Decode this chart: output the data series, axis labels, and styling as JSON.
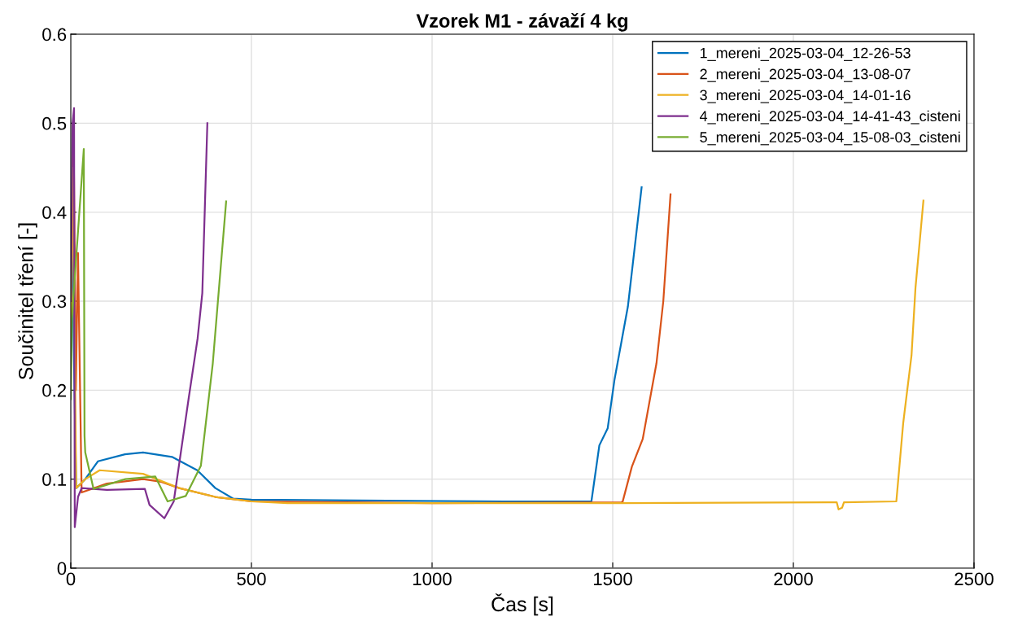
{
  "chart_data": {
    "type": "line",
    "title": "Vzorek M1 - závaží 4 kg",
    "xlabel": "Čas [s]",
    "ylabel": "Součinitel tření [-]",
    "xlim": [
      0,
      2500
    ],
    "ylim": [
      0,
      0.6
    ],
    "xticks": [
      0,
      500,
      1000,
      1500,
      2000,
      2500
    ],
    "yticks": [
      0,
      0.1,
      0.2,
      0.3,
      0.4,
      0.5,
      0.6
    ],
    "grid": true,
    "legend": "top right",
    "marker": "none",
    "line_style": "solid",
    "series": [
      {
        "name": "1_mereni_2025-03-04_12-26-53",
        "color": "#0072bd",
        "x": [
          0,
          3,
          15,
          40,
          75,
          150,
          200,
          280,
          350,
          400,
          450,
          500,
          800,
          1200,
          1441,
          1463,
          1486,
          1505,
          1542,
          1580
        ],
        "values": [
          0.3,
          0.37,
          0.09,
          0.1,
          0.12,
          0.128,
          0.13,
          0.125,
          0.11,
          0.09,
          0.078,
          0.077,
          0.076,
          0.075,
          0.075,
          0.138,
          0.157,
          0.212,
          0.294,
          0.428
        ]
      },
      {
        "name": "2_mereni_2025-03-04_13-08-07",
        "color": "#d95319",
        "x": [
          0,
          8,
          14,
          20,
          30,
          100,
          200,
          250,
          300,
          400,
          500,
          1000,
          1527,
          1553,
          1583,
          1621,
          1640,
          1660
        ],
        "values": [
          0.3,
          0.481,
          0.2,
          0.354,
          0.085,
          0.095,
          0.1,
          0.097,
          0.09,
          0.08,
          0.075,
          0.073,
          0.074,
          0.114,
          0.145,
          0.23,
          0.3,
          0.42
        ]
      },
      {
        "name": "3_mereni_2025-03-04_14-01-16",
        "color": "#edb120",
        "x": [
          0,
          6,
          15,
          40,
          80,
          200,
          250,
          300,
          400,
          500,
          600,
          1000,
          1500,
          2120,
          2125,
          2135,
          2140,
          2285,
          2304,
          2327,
          2338,
          2360
        ],
        "values": [
          0.24,
          0.45,
          0.09,
          0.1,
          0.11,
          0.106,
          0.098,
          0.09,
          0.08,
          0.075,
          0.073,
          0.073,
          0.073,
          0.074,
          0.066,
          0.068,
          0.074,
          0.075,
          0.163,
          0.239,
          0.315,
          0.413
        ]
      },
      {
        "name": "4_mereni_2025-03-04_14-41-43_cisteni",
        "color": "#7e2f8e",
        "x": [
          0,
          5,
          9,
          11,
          20,
          30,
          100,
          205,
          218,
          259,
          285,
          326,
          351,
          364,
          378
        ],
        "values": [
          0.3,
          0.5,
          0.517,
          0.046,
          0.08,
          0.09,
          0.088,
          0.089,
          0.071,
          0.056,
          0.075,
          0.19,
          0.258,
          0.309,
          0.5
        ]
      },
      {
        "name": "5_mereni_2025-03-04_15-08-03_cisteni",
        "color": "#77ac30",
        "x": [
          0,
          3,
          36,
          38,
          40,
          63,
          151,
          234,
          268,
          318,
          360,
          393,
          430
        ],
        "values": [
          0.19,
          0.28,
          0.471,
          0.149,
          0.13,
          0.089,
          0.1,
          0.103,
          0.075,
          0.081,
          0.115,
          0.23,
          0.412
        ]
      }
    ]
  }
}
